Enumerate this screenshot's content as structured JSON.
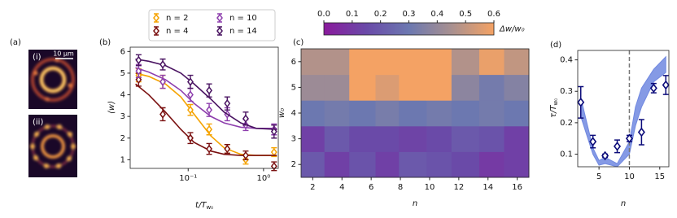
{
  "image_panel": {
    "label": "(a)",
    "insets": [
      "(i)",
      "(ii)"
    ],
    "scale_bar": "10 μm"
  },
  "chart_data": [
    {
      "type": "line",
      "label": "(b)",
      "xlabel": "t/T",
      "xlabel_sub": "w₀",
      "ylabel": "⟨w⟩",
      "xscale": "log",
      "xlim": [
        0.017,
        1.57
      ],
      "xticks": [
        {
          "value": 0.1,
          "label": "10⁻¹"
        },
        {
          "value": 1,
          "label": "10⁰"
        }
      ],
      "ylim": [
        0.6,
        6.2
      ],
      "yticks": [
        1,
        2,
        3,
        4,
        5,
        6
      ],
      "legend": "top",
      "x": [
        0.022,
        0.046,
        0.107,
        0.19,
        0.33,
        0.58,
        1.38
      ],
      "fit_x": [
        0.02,
        0.03,
        0.05,
        0.08,
        0.12,
        0.2,
        0.3,
        0.5,
        0.8,
        1.5
      ],
      "series": [
        {
          "name": "n = 2",
          "color": "#f5a300",
          "values": [
            4.9,
            4.6,
            3.3,
            2.4,
            1.5,
            1.0,
            1.35
          ],
          "errors": [
            0.3,
            0.3,
            0.25,
            0.25,
            0.2,
            0.2,
            0.2
          ],
          "fit": [
            5.0,
            4.85,
            4.5,
            3.9,
            3.1,
            2.1,
            1.55,
            1.25,
            1.2,
            1.2
          ]
        },
        {
          "name": "n = 4",
          "color": "#7a1010",
          "values": [
            4.7,
            3.1,
            2.0,
            1.5,
            1.5,
            1.2,
            0.7
          ],
          "errors": [
            0.3,
            0.3,
            0.25,
            0.25,
            0.2,
            0.2,
            0.2
          ],
          "fit": [
            4.5,
            4.0,
            3.2,
            2.4,
            1.8,
            1.4,
            1.25,
            1.2,
            1.2,
            1.2
          ]
        },
        {
          "name": "n = 10",
          "color": "#8e3fae",
          "values": [
            5.1,
            4.6,
            4.0,
            3.3,
            3.1,
            2.6,
            2.4
          ],
          "errors": [
            0.3,
            0.3,
            0.3,
            0.3,
            0.3,
            0.25,
            0.25
          ],
          "fit": [
            5.25,
            5.05,
            4.7,
            4.2,
            3.6,
            3.0,
            2.7,
            2.5,
            2.45,
            2.45
          ]
        },
        {
          "name": "n = 14",
          "color": "#4a1462",
          "values": [
            5.6,
            5.4,
            4.6,
            4.2,
            3.6,
            2.9,
            2.3
          ],
          "errors": [
            0.25,
            0.25,
            0.3,
            0.3,
            0.3,
            0.3,
            0.3
          ],
          "fit": [
            5.65,
            5.55,
            5.35,
            5.0,
            4.5,
            3.8,
            3.2,
            2.7,
            2.45,
            2.4
          ]
        }
      ]
    },
    {
      "type": "heatmap",
      "label": "(c)",
      "xlabel": "n",
      "ylabel": "w₀",
      "xlim": [
        1.2,
        16.8
      ],
      "xticks": [
        2,
        4,
        6,
        8,
        10,
        12,
        14,
        16
      ],
      "ylim": [
        1.5,
        6.5
      ],
      "yticks": [
        2,
        3,
        4,
        5,
        6
      ],
      "x_edges": [
        1.2,
        2.8,
        4.5,
        6.3,
        7.9,
        9.8,
        11.5,
        13.4,
        15.1,
        16.8
      ],
      "y_edges": [
        1.5,
        2.5,
        3.5,
        4.5,
        5.5,
        6.5
      ],
      "values": [
        [
          0.2,
          0.12,
          0.18,
          0.12,
          0.2,
          0.18,
          0.15,
          0.1,
          0.12
        ],
        [
          0.12,
          0.2,
          0.15,
          0.15,
          0.13,
          0.15,
          0.2,
          0.18,
          0.12
        ],
        [
          0.3,
          0.32,
          0.3,
          0.33,
          0.3,
          0.32,
          0.3,
          0.32,
          0.3
        ],
        [
          0.42,
          0.42,
          0.6,
          0.55,
          0.6,
          0.6,
          0.38,
          0.32,
          0.36
        ],
        [
          0.47,
          0.47,
          0.6,
          0.6,
          0.6,
          0.6,
          0.47,
          0.58,
          0.5
        ]
      ],
      "clim": [
        0,
        0.6
      ],
      "colormap": [
        "#8a1a9c",
        "#6a4aa8",
        "#6c78b0",
        "#a89090",
        "#f4a264"
      ],
      "cticks": [
        {
          "value": 0,
          "label": "0.0"
        },
        0.1,
        0.2,
        0.3,
        0.4,
        0.5,
        0.6
      ],
      "cbar_label": "Δw/w₀"
    },
    {
      "type": "scatter",
      "label": "(d)",
      "xlabel": "n",
      "ylabel": "τ/T",
      "ylabel_sub": "w₀",
      "xlim": [
        1.5,
        16.5
      ],
      "xticks": [
        5,
        10,
        15
      ],
      "ylim": [
        0.06,
        0.43
      ],
      "yticks": [
        0.1,
        0.2,
        0.3,
        0.4
      ],
      "x": [
        2,
        4,
        6,
        8,
        10,
        12,
        14,
        16
      ],
      "values": [
        0.265,
        0.14,
        0.095,
        0.125,
        0.15,
        0.17,
        0.31,
        0.32
      ],
      "errors": [
        0.05,
        0.02,
        0.005,
        0.02,
        0.01,
        0.04,
        0.015,
        0.03
      ],
      "color": "#0c0c7a",
      "vline": 10,
      "band": {
        "color": "#7088e0",
        "x": [
          2,
          4,
          5,
          6,
          8,
          10,
          11,
          12,
          14,
          16
        ],
        "lower": [
          0.22,
          0.1,
          0.065,
          0.07,
          0.06,
          0.1,
          0.19,
          0.25,
          0.33,
          0.36
        ],
        "upper": [
          0.28,
          0.12,
          0.08,
          0.09,
          0.07,
          0.14,
          0.25,
          0.31,
          0.37,
          0.41
        ]
      }
    }
  ]
}
